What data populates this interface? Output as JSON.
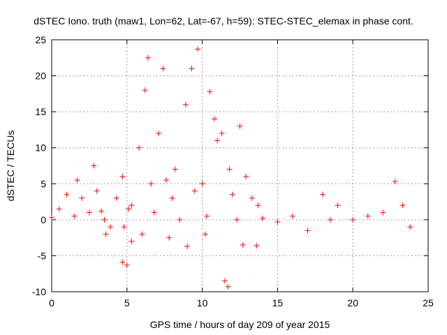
{
  "chart_data": {
    "type": "scatter",
    "title": "dSTEC Iono. truth (maw1, Lon=62, Lat=-67, h=59): STEC-STEC_elemax in phase cont.",
    "xlabel": "GPS time / hours of day 209 of year 2015",
    "ylabel": "dSTEC  / TECUs",
    "xlim": [
      0,
      25
    ],
    "ylim": [
      -10,
      25
    ],
    "xticks": [
      0,
      5,
      10,
      15,
      20,
      25
    ],
    "yticks": [
      -10,
      -5,
      0,
      5,
      10,
      15,
      20,
      25
    ],
    "grid": true,
    "marker": "plus",
    "series": [
      {
        "color": "#ff0000",
        "values": [
          [
            0.0,
            0.3
          ],
          [
            0.5,
            1.5
          ],
          [
            1.0,
            3.5
          ],
          [
            1.5,
            0.5
          ],
          [
            2.0,
            3.0
          ],
          [
            2.5,
            1.0
          ],
          [
            3.0,
            4.0
          ],
          [
            3.5,
            0.0
          ],
          [
            3.3,
            1.2
          ],
          [
            3.9,
            -1.0
          ],
          [
            4.3,
            3.0
          ],
          [
            4.7,
            6.0
          ],
          [
            4.7,
            -5.9
          ],
          [
            5.0,
            -6.3
          ],
          [
            5.3,
            -3.0
          ],
          [
            5.3,
            2.0
          ],
          [
            5.8,
            10.0
          ],
          [
            6.2,
            18.0
          ],
          [
            6.4,
            22.5
          ],
          [
            6.6,
            5.0
          ],
          [
            6.8,
            1.0
          ],
          [
            7.1,
            12.0
          ],
          [
            7.4,
            21.0
          ],
          [
            7.6,
            5.5
          ],
          [
            8.0,
            3.0
          ],
          [
            8.5,
            0.0
          ],
          [
            8.9,
            16.0
          ],
          [
            9.3,
            21.0
          ],
          [
            9.7,
            23.7
          ],
          [
            10.0,
            5.0
          ],
          [
            10.3,
            0.5
          ],
          [
            10.5,
            17.8
          ],
          [
            10.8,
            14.0
          ],
          [
            11.0,
            11.0
          ],
          [
            11.3,
            12.0
          ],
          [
            11.5,
            -8.5
          ],
          [
            11.7,
            -9.3
          ],
          [
            11.8,
            7.0
          ],
          [
            12.0,
            3.5
          ],
          [
            12.3,
            0.0
          ],
          [
            12.5,
            13.0
          ],
          [
            12.9,
            6.0
          ],
          [
            13.3,
            3.0
          ],
          [
            13.6,
            -3.6
          ],
          [
            14.0,
            0.2
          ],
          [
            15.0,
            -0.3
          ],
          [
            16.0,
            0.5
          ],
          [
            17.0,
            -1.5
          ],
          [
            18.0,
            3.5
          ],
          [
            18.5,
            0.0
          ],
          [
            19.0,
            2.0
          ],
          [
            20.0,
            0.0
          ],
          [
            21.0,
            0.5
          ],
          [
            22.0,
            1.0
          ],
          [
            22.8,
            5.3
          ],
          [
            23.3,
            2.0
          ],
          [
            23.8,
            -1.0
          ],
          [
            5.1,
            1.5
          ],
          [
            4.8,
            -1.0
          ],
          [
            6.0,
            -2.0
          ],
          [
            7.8,
            -2.5
          ],
          [
            9.0,
            -3.7
          ],
          [
            10.2,
            -2.0
          ],
          [
            12.7,
            -3.5
          ],
          [
            8.2,
            7.0
          ],
          [
            9.5,
            4.0
          ],
          [
            1.7,
            5.5
          ],
          [
            2.8,
            7.5
          ],
          [
            3.6,
            -2.0
          ],
          [
            13.7,
            2.0
          ]
        ]
      }
    ]
  }
}
